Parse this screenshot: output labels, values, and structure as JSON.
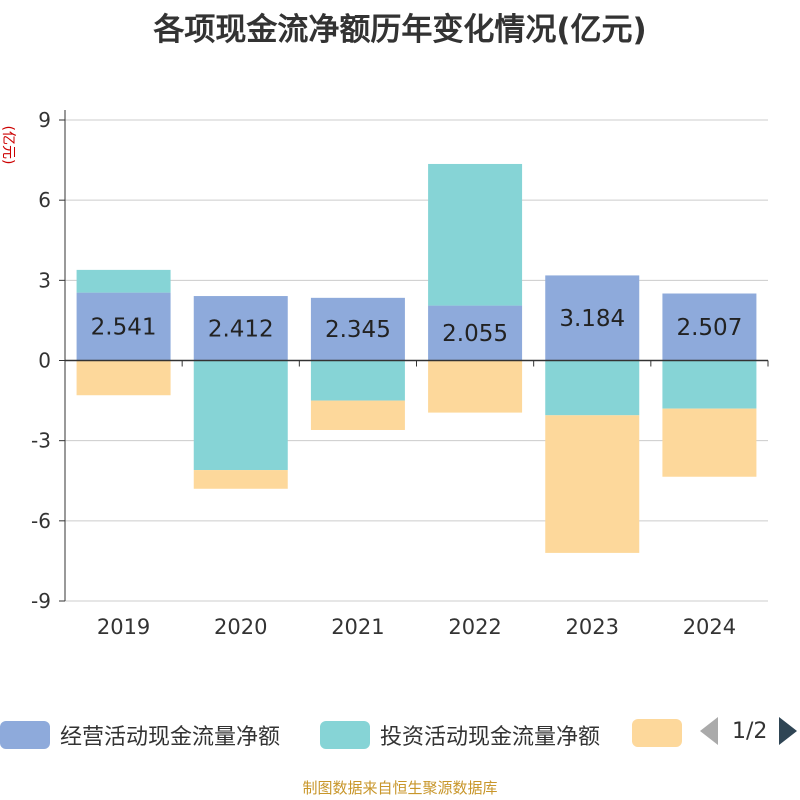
{
  "title": "各项现金流净额历年变化情况(亿元)",
  "source": "制图数据来自恒生聚源数据库",
  "legend": {
    "items": [
      {
        "label": "经营活动现金流量净额",
        "color": "#8eaadb"
      },
      {
        "label": "投资活动现金流量净额",
        "color": "#86d4d6"
      },
      {
        "label": "",
        "color": "#fdd89b"
      }
    ],
    "page": "1/2"
  },
  "chart_data": {
    "type": "bar",
    "stacked": true,
    "ylabel": "(亿元)",
    "ylim": [
      -9,
      9
    ],
    "yticks": [
      -9,
      -6,
      -3,
      0,
      3,
      6,
      9
    ],
    "categories": [
      "2019",
      "2020",
      "2021",
      "2022",
      "2023",
      "2024"
    ],
    "series": [
      {
        "name": "经营活动现金流量净额",
        "color": "#8eaadb",
        "values": [
          2.541,
          2.412,
          2.345,
          2.055,
          3.184,
          2.507
        ],
        "labels": [
          "2.541",
          "2.412",
          "2.345",
          "2.055",
          "3.184",
          "2.507"
        ]
      },
      {
        "name": "投资活动现金流量净额",
        "color": "#86d4d6",
        "values": [
          0.85,
          -4.1,
          -1.5,
          5.3,
          -2.05,
          -1.8
        ]
      },
      {
        "color": "#fdd89b",
        "values": [
          -1.3,
          -0.7,
          -1.1,
          -1.95,
          -5.15,
          -2.55
        ]
      }
    ],
    "grid": true
  }
}
